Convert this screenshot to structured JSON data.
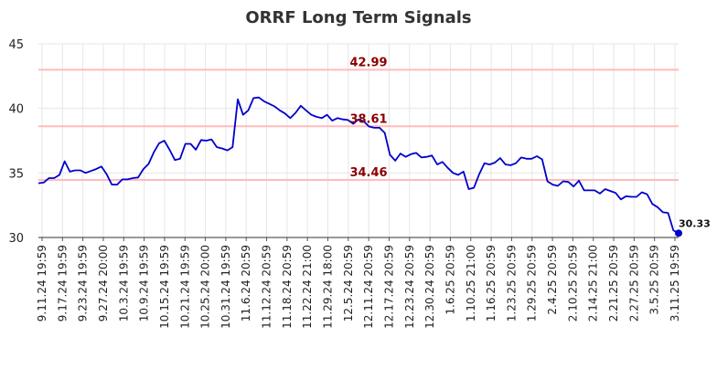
{
  "chart_data": {
    "type": "line",
    "title": "ORRF Long Term Signals",
    "xlabel": "",
    "ylabel": "",
    "ylim": [
      30,
      45
    ],
    "yticks": [
      30,
      35,
      40,
      45
    ],
    "grid": true,
    "xtick_labels": [
      "9.11.24 19:59",
      "9.17.24 19:59",
      "9.23.24 19:59",
      "9.27.24 20:00",
      "10.3.24 19:59",
      "10.9.24 19:59",
      "10.15.24 19:59",
      "10.21.24 19:59",
      "10.25.24 20:00",
      "10.31.24 19:59",
      "11.6.24 20:59",
      "11.12.24 20:59",
      "11.18.24 20:59",
      "11.22.24 21:00",
      "11.29.24 18:00",
      "12.5.24 20:59",
      "12.11.24 20:59",
      "12.17.24 20:59",
      "12.23.24 20:59",
      "12.30.24 20:59",
      "1.6.25 20:59",
      "1.10.25 21:00",
      "1.16.25 20:59",
      "1.23.25 20:59",
      "1.29.25 20:59",
      "2.4.25 20:59",
      "2.10.25 20:59",
      "2.14.25 21:00",
      "2.21.25 20:59",
      "2.27.25 20:59",
      "3.5.25 20:59",
      "3.11.25 19:59"
    ],
    "series": [
      {
        "color": "#0000cc",
        "values": [
          34.2,
          34.25,
          34.6,
          34.6,
          34.85,
          35.9,
          35.1,
          35.2,
          35.2,
          35.0,
          35.15,
          35.3,
          35.5,
          34.9,
          34.1,
          34.1,
          34.5,
          34.5,
          34.6,
          34.65,
          35.3,
          35.7,
          36.6,
          37.3,
          37.5,
          36.8,
          36.0,
          36.1,
          37.25,
          37.25,
          36.8,
          37.55,
          37.5,
          37.6,
          37.0,
          36.9,
          36.75,
          37.0,
          40.7,
          39.5,
          39.85,
          40.8,
          40.85,
          40.55,
          40.35,
          40.15,
          39.85,
          39.6,
          39.25,
          39.65,
          40.2,
          39.85,
          39.5,
          39.35,
          39.25,
          39.5,
          39.05,
          39.25,
          39.15,
          39.1,
          38.8,
          39.15,
          39.0,
          38.6,
          38.5,
          38.5,
          38.1,
          36.4,
          35.95,
          36.5,
          36.25,
          36.45,
          36.55,
          36.2,
          36.25,
          36.35,
          35.65,
          35.85,
          35.4,
          35.0,
          34.85,
          35.1,
          33.75,
          33.85,
          34.9,
          35.75,
          35.65,
          35.8,
          36.15,
          35.65,
          35.6,
          35.75,
          36.2,
          36.1,
          36.1,
          36.3,
          36.05,
          34.35,
          34.1,
          34.0,
          34.35,
          34.3,
          33.95,
          34.4,
          33.65,
          33.65,
          33.65,
          33.4,
          33.75,
          33.6,
          33.45,
          32.95,
          33.2,
          33.15,
          33.15,
          33.5,
          33.35,
          32.6,
          32.35,
          31.95,
          31.9,
          30.55,
          30.33
        ]
      }
    ],
    "hlines": [
      {
        "value": 42.99,
        "label": "42.99",
        "color": "#ffbbbb"
      },
      {
        "value": 38.61,
        "label": "38.61",
        "color": "#ffbbbb"
      },
      {
        "value": 34.46,
        "label": "34.46",
        "color": "#ffbbbb"
      }
    ],
    "last_label": "30.33",
    "hline_label_color": "#8b0000"
  }
}
